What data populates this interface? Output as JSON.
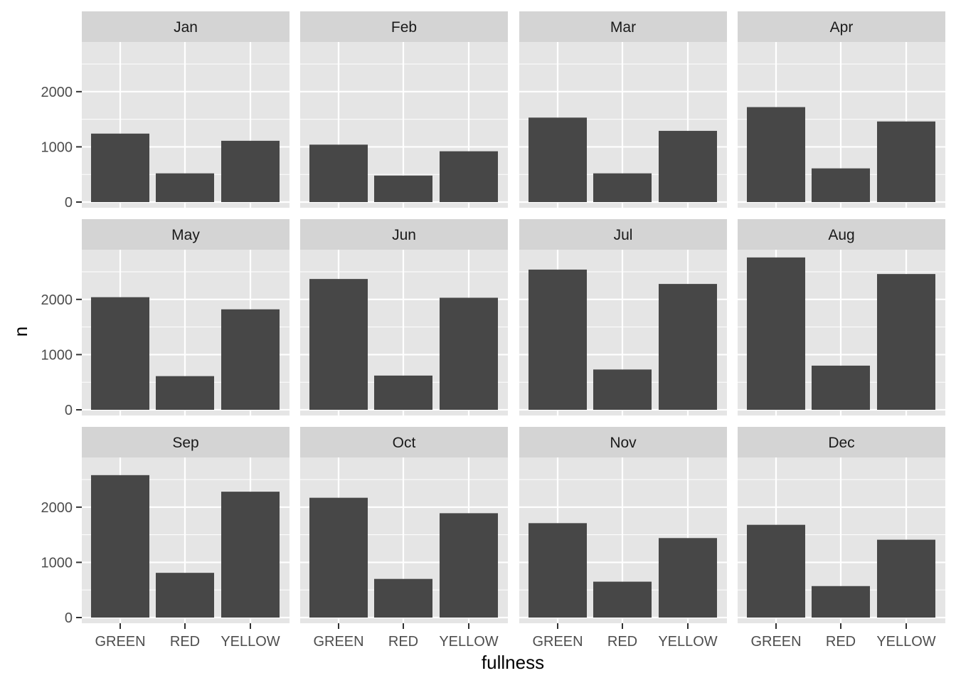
{
  "chart_data": {
    "type": "bar",
    "facet_by": "month",
    "xlabel": "fullness",
    "ylabel": "n",
    "categories": [
      "GREEN",
      "RED",
      "YELLOW"
    ],
    "y_ticks": [
      "0",
      "1000",
      "2000"
    ],
    "ylim": [
      0,
      2900
    ],
    "grid": true,
    "legend": "none",
    "colors": {
      "bar": "#474747",
      "panel": "#e5e5e5",
      "strip": "#d4d4d4",
      "grid": "#ffffff"
    },
    "facets": [
      {
        "label": "Jan",
        "values": [
          1240,
          520,
          1110
        ]
      },
      {
        "label": "Feb",
        "values": [
          1040,
          480,
          920
        ]
      },
      {
        "label": "Mar",
        "values": [
          1530,
          520,
          1290
        ]
      },
      {
        "label": "Apr",
        "values": [
          1720,
          610,
          1460
        ]
      },
      {
        "label": "May",
        "values": [
          2040,
          610,
          1820
        ]
      },
      {
        "label": "Jun",
        "values": [
          2370,
          620,
          2030
        ]
      },
      {
        "label": "Jul",
        "values": [
          2540,
          730,
          2280
        ]
      },
      {
        "label": "Aug",
        "values": [
          2760,
          800,
          2460
        ]
      },
      {
        "label": "Sep",
        "values": [
          2580,
          810,
          2280
        ]
      },
      {
        "label": "Oct",
        "values": [
          2170,
          700,
          1890
        ]
      },
      {
        "label": "Nov",
        "values": [
          1710,
          650,
          1440
        ]
      },
      {
        "label": "Dec",
        "values": [
          1680,
          570,
          1410
        ]
      }
    ]
  }
}
